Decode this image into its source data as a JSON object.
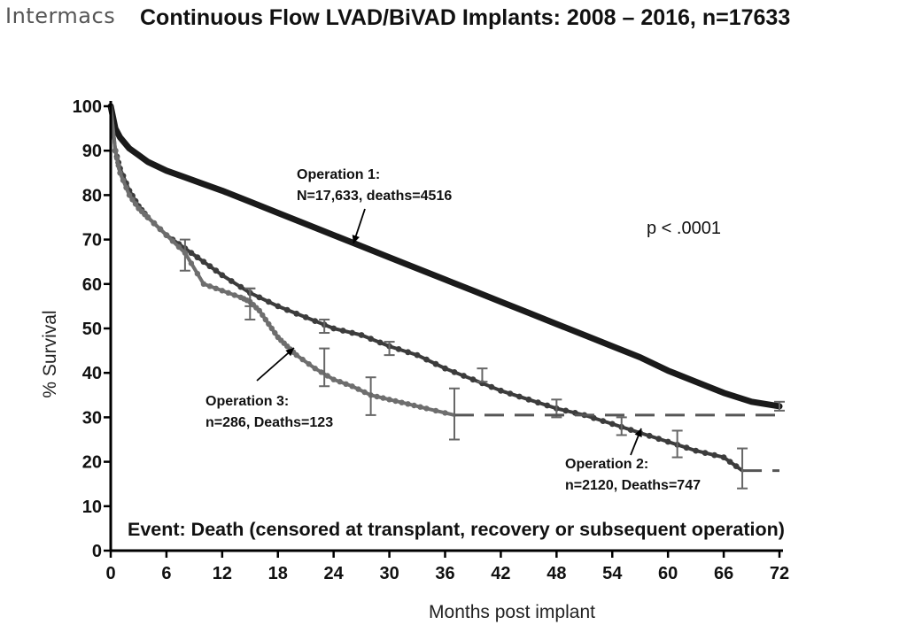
{
  "header": {
    "logo": "Intermacs",
    "title": "Continuous Flow LVAD/BiVAD Implants:  2008 – 2016, n=17633"
  },
  "chart_data": {
    "type": "line",
    "title": "Continuous Flow LVAD/BiVAD Implants:  2008 – 2016, n=17633",
    "xlabel": "Months post implant",
    "ylabel": "% Survival",
    "xlim": [
      0,
      72
    ],
    "ylim": [
      0,
      100
    ],
    "xticks": [
      0,
      6,
      12,
      18,
      24,
      30,
      36,
      42,
      48,
      54,
      60,
      66,
      72
    ],
    "yticks": [
      0,
      10,
      20,
      30,
      40,
      50,
      60,
      70,
      80,
      90,
      100
    ],
    "pvalue": "p < .0001",
    "event_note": "Event:  Death (censored at transplant, recovery or subsequent operation)",
    "series": [
      {
        "name": "Operation 1",
        "label_line1": "Operation 1:",
        "label_line2": "N=17,633, deaths=4516",
        "color": "#1a1a1a",
        "x": [
          0,
          0.5,
          1,
          2,
          3,
          4,
          6,
          8,
          10,
          12,
          15,
          18,
          21,
          24,
          27,
          30,
          33,
          36,
          39,
          42,
          45,
          48,
          51,
          54,
          57,
          60,
          63,
          66,
          69,
          72
        ],
        "y": [
          100,
          95,
          93,
          90.5,
          89,
          87.5,
          85.5,
          84,
          82.5,
          81,
          78.5,
          76,
          73.5,
          71,
          68.5,
          66,
          63.5,
          61,
          58.5,
          56,
          53.5,
          51,
          48.5,
          46,
          43.5,
          40.5,
          38,
          35.5,
          33.5,
          32.5
        ],
        "error_bars": [
          {
            "x": 72,
            "low": 31.5,
            "high": 33.5
          }
        ]
      },
      {
        "name": "Operation 2",
        "label_line1": "Operation 2:",
        "label_line2": "n=2120, Deaths=747",
        "color": "#3c3c3c",
        "x": [
          0,
          0.5,
          1,
          2,
          3,
          4,
          6,
          8,
          10,
          12,
          15,
          18,
          21,
          24,
          27,
          30,
          33,
          36,
          39,
          42,
          45,
          48,
          51,
          54,
          57,
          60,
          63,
          66,
          68
        ],
        "y": [
          100,
          90,
          86,
          81,
          77.5,
          75,
          71,
          68,
          65,
          62,
          58,
          55,
          52.5,
          50,
          48.5,
          46,
          44,
          41,
          38.5,
          36,
          34,
          32,
          30.5,
          28.5,
          26.5,
          24.5,
          22.5,
          21,
          18
        ],
        "error_bars": [
          {
            "x": 8,
            "low": 63,
            "high": 70
          },
          {
            "x": 15,
            "low": 55,
            "high": 59
          },
          {
            "x": 23,
            "low": 49,
            "high": 52
          },
          {
            "x": 30,
            "low": 44,
            "high": 47
          },
          {
            "x": 40,
            "low": 38,
            "high": 41
          },
          {
            "x": 48,
            "low": 30,
            "high": 34
          },
          {
            "x": 55,
            "low": 26,
            "high": 30
          },
          {
            "x": 61,
            "low": 21,
            "high": 27
          },
          {
            "x": 68,
            "low": 14,
            "high": 23
          }
        ],
        "extension": {
          "x1": 68,
          "x2": 72,
          "y": 18
        }
      },
      {
        "name": "Operation 3",
        "label_line1": "Operation 3:",
        "label_line2": "n=286, Deaths=123",
        "color": "#6e6e6e",
        "x": [
          0,
          0.5,
          1,
          2,
          3,
          4,
          6,
          8,
          10,
          12,
          14,
          15,
          16,
          17,
          18,
          19,
          20,
          22,
          24,
          26,
          28,
          30,
          32,
          34,
          37
        ],
        "y": [
          100,
          90,
          85,
          80,
          77,
          75,
          71,
          67,
          60,
          58.5,
          57,
          56,
          54,
          51,
          48,
          46,
          44,
          41,
          38.5,
          37,
          35,
          34,
          33,
          32,
          30.5
        ],
        "error_bars": [
          {
            "x": 15,
            "low": 52,
            "high": 59
          },
          {
            "x": 23,
            "low": 37,
            "high": 45.5
          },
          {
            "x": 28,
            "low": 30.5,
            "high": 39
          },
          {
            "x": 37,
            "low": 25,
            "high": 36.5
          }
        ],
        "extension": {
          "x1": 37,
          "x2": 72,
          "y": 30.5
        }
      }
    ]
  }
}
